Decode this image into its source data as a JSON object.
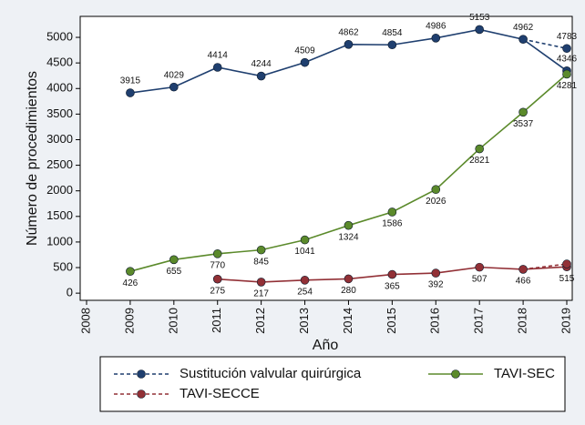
{
  "chart_data": {
    "type": "line",
    "x": [
      2008,
      2009,
      2010,
      2011,
      2012,
      2013,
      2014,
      2015,
      2016,
      2017,
      2018,
      2019
    ],
    "xlim": [
      2007.854,
      2019.125
    ],
    "xticks": [
      2008,
      2009,
      2010,
      2011,
      2012,
      2013,
      2014,
      2015,
      2016,
      2017,
      2018,
      2019
    ],
    "ylim": [
      -140,
      5410
    ],
    "yticks": [
      0,
      500,
      1000,
      1500,
      2000,
      2500,
      3000,
      3500,
      4000,
      4500,
      5000
    ],
    "xlabel": "Año",
    "ylabel": "Número de procedimientos",
    "series": [
      {
        "name": "Sustitución valvular quirúrgica",
        "color": "#1f3f6f",
        "legend_dashed": true,
        "label_position": "above",
        "dashed_labeled": true,
        "values": [
          null,
          3915,
          4029,
          4414,
          4244,
          4509,
          4862,
          4854,
          4986,
          5153,
          4962,
          4346
        ],
        "dashed_values": [
          null,
          null,
          null,
          null,
          null,
          null,
          null,
          null,
          null,
          null,
          4962,
          4783
        ]
      },
      {
        "name": "TAVI-SEC",
        "color": "#5b8a2b",
        "legend_dashed": false,
        "label_position": "below",
        "dashed_labeled": false,
        "values": [
          null,
          426,
          655,
          770,
          845,
          1041,
          1324,
          1586,
          2026,
          2821,
          3537,
          4281
        ]
      },
      {
        "name": "TAVI-SECCE",
        "color": "#923036",
        "legend_dashed": true,
        "label_position": "below",
        "dashed_labeled": false,
        "values": [
          null,
          null,
          null,
          275,
          217,
          254,
          280,
          365,
          392,
          507,
          466,
          515
        ],
        "dashed_values": [
          null,
          null,
          null,
          null,
          null,
          null,
          null,
          null,
          null,
          null,
          466,
          570
        ]
      }
    ]
  }
}
